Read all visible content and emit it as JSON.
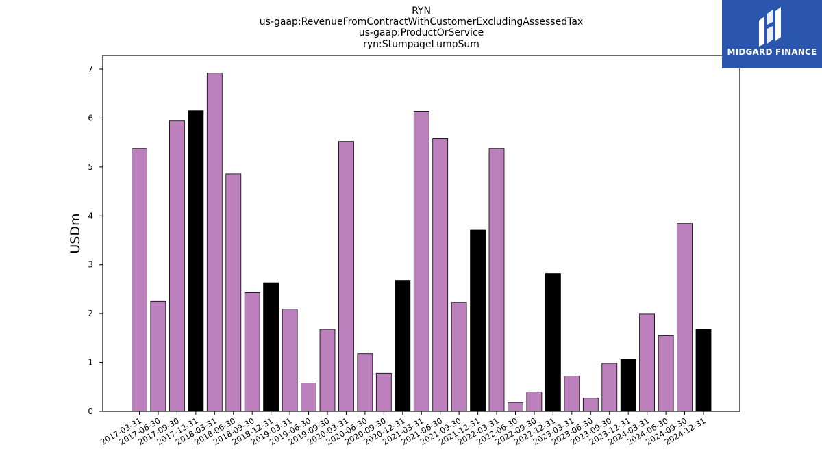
{
  "chart_data": {
    "type": "bar",
    "title_lines": [
      "RYN",
      "us-gaap:RevenueFromContractWithCustomerExcludingAssessedTax",
      "us-gaap:ProductOrService",
      "ryn:StumpageLumpSum"
    ],
    "xlabel": "",
    "ylabel": "USDm",
    "ylim": [
      0,
      7.28
    ],
    "yticks": [
      "0",
      "1",
      "2",
      "3",
      "4",
      "5",
      "6",
      "7"
    ],
    "grid": false,
    "categories": [
      "2017-03-31",
      "2017-06-30",
      "2017-09-30",
      "2017-12-31",
      "2018-03-31",
      "2018-06-30",
      "2018-09-30",
      "2018-12-31",
      "2019-03-31",
      "2019-06-30",
      "2019-09-30",
      "2020-03-31",
      "2020-06-30",
      "2020-09-30",
      "2020-12-31",
      "2021-03-31",
      "2021-06-30",
      "2021-09-30",
      "2021-12-31",
      "2022-03-31",
      "2022-06-30",
      "2022-09-30",
      "2022-12-31",
      "2023-03-31",
      "2023-06-30",
      "2023-09-30",
      "2023-12-31",
      "2024-03-31",
      "2024-06-30",
      "2024-09-30",
      "2024-12-31"
    ],
    "values": [
      5.38,
      2.25,
      5.94,
      6.15,
      6.92,
      4.86,
      2.43,
      2.63,
      2.09,
      0.58,
      1.68,
      5.52,
      1.18,
      0.78,
      2.68,
      6.14,
      5.58,
      2.23,
      3.71,
      5.38,
      0.18,
      0.4,
      2.82,
      0.72,
      0.27,
      0.98,
      1.06,
      1.99,
      1.55,
      3.84,
      1.68
    ],
    "year_end": [
      false,
      false,
      false,
      true,
      false,
      false,
      false,
      true,
      false,
      false,
      false,
      false,
      false,
      false,
      true,
      false,
      false,
      false,
      true,
      false,
      false,
      false,
      true,
      false,
      false,
      false,
      true,
      false,
      false,
      false,
      true
    ],
    "colors": {
      "quarter": "#bc80bd",
      "year_end": "#000000",
      "edge": "#000000"
    }
  },
  "logo": {
    "text": "MIDGARD FINANCE",
    "background": "#2a56ad",
    "icon": "midgard-logo-icon"
  }
}
